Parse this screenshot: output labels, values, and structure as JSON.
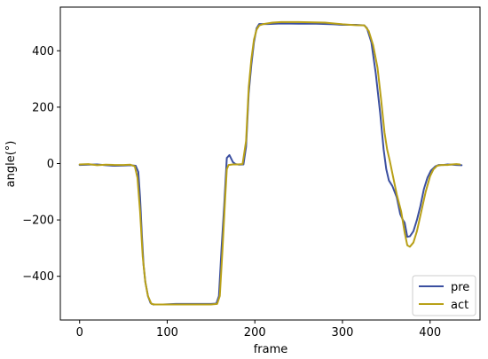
{
  "chart_data": {
    "type": "line",
    "title": "",
    "xlabel": "frame",
    "ylabel": "angle(°)",
    "xlim": [
      -22,
      457
    ],
    "ylim": [
      -555,
      555
    ],
    "xticks": [
      0,
      100,
      200,
      300,
      400
    ],
    "yticks": [
      -400,
      -200,
      0,
      200,
      400
    ],
    "grid": false,
    "legend": "lower-right",
    "series": [
      {
        "name": "pre",
        "color": "#3b4fa0",
        "points": [
          [
            0,
            -5
          ],
          [
            10,
            -4
          ],
          [
            20,
            -3
          ],
          [
            30,
            -6
          ],
          [
            40,
            -8
          ],
          [
            50,
            -7
          ],
          [
            58,
            -6
          ],
          [
            64,
            -8
          ],
          [
            67,
            -30
          ],
          [
            69,
            -120
          ],
          [
            71,
            -250
          ],
          [
            73,
            -360
          ],
          [
            75,
            -420
          ],
          [
            78,
            -470
          ],
          [
            81,
            -495
          ],
          [
            84,
            -500
          ],
          [
            95,
            -500
          ],
          [
            110,
            -498
          ],
          [
            130,
            -498
          ],
          [
            150,
            -498
          ],
          [
            156,
            -497
          ],
          [
            159,
            -470
          ],
          [
            162,
            -300
          ],
          [
            165,
            -150
          ],
          [
            168,
            20
          ],
          [
            171,
            30
          ],
          [
            175,
            5
          ],
          [
            178,
            -2
          ],
          [
            182,
            -4
          ],
          [
            187,
            -3
          ],
          [
            190,
            60
          ],
          [
            193,
            250
          ],
          [
            196,
            350
          ],
          [
            199,
            430
          ],
          [
            202,
            480
          ],
          [
            205,
            495
          ],
          [
            215,
            495
          ],
          [
            230,
            497
          ],
          [
            250,
            496
          ],
          [
            270,
            496
          ],
          [
            290,
            494
          ],
          [
            300,
            492
          ],
          [
            315,
            492
          ],
          [
            325,
            490
          ],
          [
            328,
            480
          ],
          [
            333,
            430
          ],
          [
            338,
            320
          ],
          [
            343,
            180
          ],
          [
            347,
            50
          ],
          [
            350,
            -20
          ],
          [
            353,
            -60
          ],
          [
            357,
            -80
          ],
          [
            362,
            -120
          ],
          [
            366,
            -180
          ],
          [
            369,
            -200
          ],
          [
            371,
            -210
          ],
          [
            374,
            -260
          ],
          [
            377,
            -258
          ],
          [
            381,
            -240
          ],
          [
            385,
            -200
          ],
          [
            389,
            -150
          ],
          [
            393,
            -90
          ],
          [
            397,
            -50
          ],
          [
            401,
            -25
          ],
          [
            406,
            -10
          ],
          [
            410,
            -5
          ],
          [
            415,
            -5
          ],
          [
            420,
            -3
          ],
          [
            430,
            -5
          ],
          [
            436,
            -6
          ]
        ]
      },
      {
        "name": "act",
        "color": "#b8a017",
        "points": [
          [
            0,
            -3
          ],
          [
            10,
            -2
          ],
          [
            20,
            -6
          ],
          [
            30,
            -4
          ],
          [
            40,
            -5
          ],
          [
            50,
            -5
          ],
          [
            58,
            -4
          ],
          [
            63,
            -10
          ],
          [
            66,
            -50
          ],
          [
            69,
            -170
          ],
          [
            72,
            -330
          ],
          [
            75,
            -420
          ],
          [
            78,
            -470
          ],
          [
            82,
            -498
          ],
          [
            86,
            -500
          ],
          [
            95,
            -500
          ],
          [
            110,
            -500
          ],
          [
            130,
            -500
          ],
          [
            150,
            -500
          ],
          [
            157,
            -498
          ],
          [
            160,
            -470
          ],
          [
            163,
            -310
          ],
          [
            166,
            -130
          ],
          [
            168,
            -20
          ],
          [
            170,
            -5
          ],
          [
            175,
            -3
          ],
          [
            180,
            -3
          ],
          [
            186,
            -2
          ],
          [
            190,
            80
          ],
          [
            193,
            270
          ],
          [
            196,
            370
          ],
          [
            199,
            440
          ],
          [
            202,
            475
          ],
          [
            205,
            490
          ],
          [
            210,
            495
          ],
          [
            220,
            500
          ],
          [
            230,
            502
          ],
          [
            250,
            502
          ],
          [
            280,
            500
          ],
          [
            300,
            494
          ],
          [
            315,
            491
          ],
          [
            325,
            490
          ],
          [
            330,
            470
          ],
          [
            335,
            420
          ],
          [
            340,
            340
          ],
          [
            344,
            230
          ],
          [
            348,
            110
          ],
          [
            351,
            50
          ],
          [
            354,
            10
          ],
          [
            358,
            -50
          ],
          [
            362,
            -110
          ],
          [
            367,
            -170
          ],
          [
            371,
            -245
          ],
          [
            374,
            -290
          ],
          [
            377,
            -295
          ],
          [
            381,
            -280
          ],
          [
            385,
            -240
          ],
          [
            390,
            -170
          ],
          [
            395,
            -100
          ],
          [
            400,
            -45
          ],
          [
            404,
            -20
          ],
          [
            408,
            -8
          ],
          [
            413,
            -5
          ],
          [
            420,
            -5
          ],
          [
            425,
            -3
          ],
          [
            430,
            -2
          ],
          [
            434,
            -3
          ]
        ]
      }
    ]
  }
}
